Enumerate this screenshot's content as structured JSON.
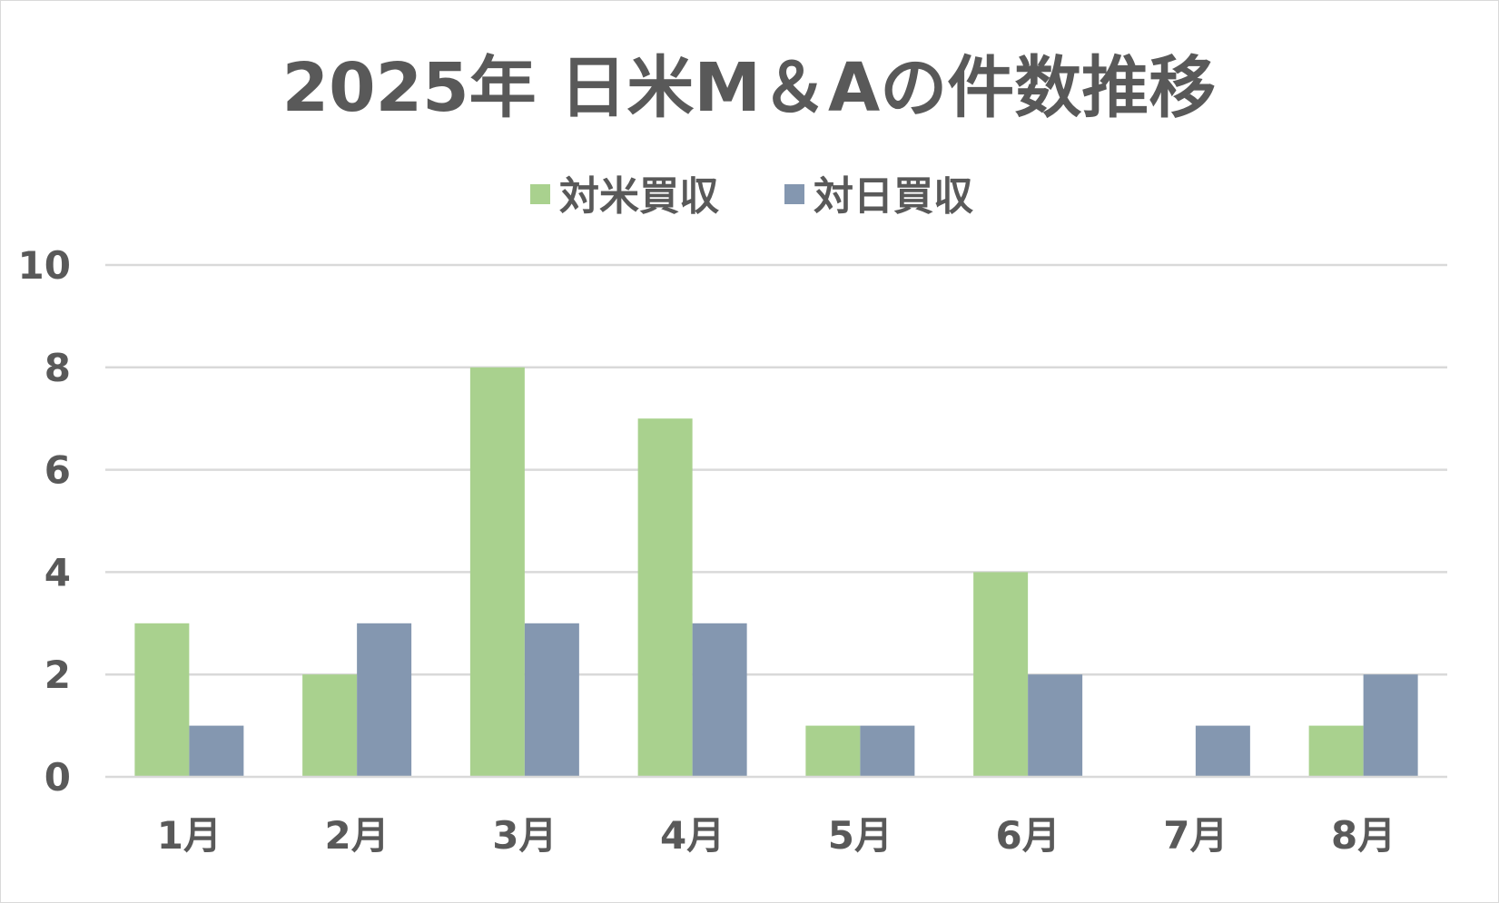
{
  "chart_data": {
    "type": "bar",
    "title": "2025年 日米M＆Aの件数推移",
    "categories": [
      "1月",
      "2月",
      "3月",
      "4月",
      "5月",
      "6月",
      "7月",
      "8月"
    ],
    "series": [
      {
        "name": "対米買収",
        "color": "#a9d18e",
        "values": [
          3,
          2,
          8,
          7,
          1,
          4,
          0,
          1
        ]
      },
      {
        "name": "対日買収",
        "color": "#8497b0",
        "values": [
          1,
          3,
          3,
          3,
          1,
          2,
          1,
          2
        ]
      }
    ],
    "ylim": [
      0,
      10
    ],
    "yticks": [
      "0",
      "2",
      "4",
      "6",
      "8",
      "10"
    ],
    "grid": true,
    "legend_position": "top"
  }
}
